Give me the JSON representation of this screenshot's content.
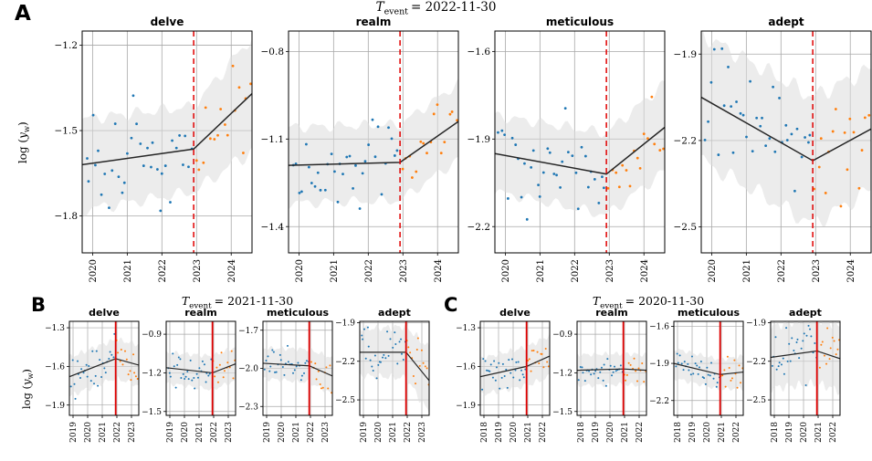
{
  "figure": {
    "background": "#ffffff",
    "ylabel": {
      "prefix": "log (",
      "var": "y",
      "sub": "w",
      "suffix": ")"
    },
    "colors": {
      "pre_scatter": "#1f77b4",
      "post_scatter": "#ff7f0e",
      "trend": "#262626",
      "band": "#dcdcdc",
      "grid": "#a8a8a8",
      "event_line": "#e00000",
      "border": "#000000",
      "text": "#000000"
    }
  },
  "chart_data": {
    "type": "line",
    "description": "Regression-discontinuity style word-frequency plots: log word frequency vs time, piecewise-linear trend with confidence band, monthly scatter (blue = pre-event, orange = post-event), red vertical line at event date.",
    "panels": [
      {
        "label": "A",
        "size": "large",
        "title": {
          "symbol": "T",
          "subscript": "event",
          "rest": "= 2022-11-30"
        },
        "event_x": 2022.917,
        "event_line_style": "dashed",
        "x_min": 2019.7,
        "x_max": 2024.6,
        "x_ticks": [
          2020,
          2021,
          2022,
          2023,
          2024
        ],
        "x_tick_labels": [
          "2020",
          "2021",
          "2022",
          "2023",
          "2024"
        ],
        "subplots": [
          {
            "word": "delve",
            "y_min": -1.93,
            "y_max": -1.15,
            "y_ticks": [
              -1.2,
              -1.5,
              -1.8
            ],
            "trend": {
              "x": [
                2019.7,
                2022.917,
                2024.6
              ],
              "y": [
                -1.62,
                -1.565,
                -1.37
              ]
            },
            "band_halfwidth": [
              0.16,
              0.15,
              0.2
            ],
            "scatter": {
              "n_pre": 34,
              "n_post": 16,
              "sd": 0.085,
              "seed": 11
            }
          },
          {
            "word": "realm",
            "y_min": -1.49,
            "y_max": -0.73,
            "y_ticks": [
              -0.8,
              -1.1,
              -1.4
            ],
            "trend": {
              "x": [
                2019.7,
                2022.917,
                2024.6
              ],
              "y": [
                -1.19,
                -1.18,
                -1.04
              ]
            },
            "band_halfwidth": [
              0.13,
              0.13,
              0.13
            ],
            "scatter": {
              "n_pre": 34,
              "n_post": 16,
              "sd": 0.07,
              "seed": 12
            }
          },
          {
            "word": "meticulous",
            "y_min": -2.29,
            "y_max": -1.53,
            "y_ticks": [
              -1.6,
              -1.9,
              -2.2
            ],
            "trend": {
              "x": [
                2019.7,
                2022.917,
                2024.6
              ],
              "y": [
                -1.95,
                -2.02,
                -1.86
              ]
            },
            "band_halfwidth": [
              0.13,
              0.14,
              0.15
            ],
            "scatter": {
              "n_pre": 34,
              "n_post": 16,
              "sd": 0.075,
              "seed": 13
            }
          },
          {
            "word": "adept",
            "y_min": -2.59,
            "y_max": -1.82,
            "y_ticks": [
              -1.9,
              -2.2,
              -2.5
            ],
            "trend": {
              "x": [
                2019.7,
                2022.917,
                2024.6
              ],
              "y": [
                -2.05,
                -2.27,
                -2.16
              ]
            },
            "band_halfwidth": [
              0.22,
              0.22,
              0.21
            ],
            "scatter": {
              "n_pre": 34,
              "n_post": 16,
              "sd": 0.105,
              "seed": 14
            }
          }
        ]
      },
      {
        "label": "B",
        "size": "small",
        "title": {
          "symbol": "T",
          "subscript": "event",
          "rest": "= 2021-11-30"
        },
        "event_x": 2021.917,
        "event_line_style": "solid",
        "x_min": 2018.75,
        "x_max": 2023.5,
        "x_ticks": [
          2019,
          2020,
          2021,
          2022,
          2023
        ],
        "x_tick_labels": [
          "2019",
          "2020",
          "2021",
          "2022",
          "2023"
        ],
        "subplots": [
          {
            "word": "delve",
            "y_min": -1.98,
            "y_max": -1.25,
            "y_ticks": [
              -1.3,
              -1.6,
              -1.9
            ],
            "trend": {
              "x": [
                2018.75,
                2021.917,
                2023.5
              ],
              "y": [
                -1.68,
                -1.54,
                -1.59
              ]
            },
            "band_halfwidth": [
              0.15,
              0.15,
              0.16
            ],
            "scatter": {
              "n_pre": 30,
              "n_post": 14,
              "sd": 0.08,
              "seed": 21
            }
          },
          {
            "word": "realm",
            "y_min": -1.53,
            "y_max": -0.8,
            "y_ticks": [
              -0.9,
              -1.2,
              -1.5
            ],
            "trend": {
              "x": [
                2018.75,
                2021.917,
                2023.5
              ],
              "y": [
                -1.16,
                -1.2,
                -1.13
              ]
            },
            "band_halfwidth": [
              0.12,
              0.13,
              0.13
            ],
            "scatter": {
              "n_pre": 30,
              "n_post": 14,
              "sd": 0.065,
              "seed": 22
            }
          },
          {
            "word": "meticulous",
            "y_min": -2.37,
            "y_max": -1.63,
            "y_ticks": [
              -1.7,
              -2.0,
              -2.3
            ],
            "trend": {
              "x": [
                2018.75,
                2021.917,
                2023.5
              ],
              "y": [
                -1.96,
                -1.98,
                -2.06
              ]
            },
            "band_halfwidth": [
              0.12,
              0.13,
              0.14
            ],
            "scatter": {
              "n_pre": 30,
              "n_post": 14,
              "sd": 0.07,
              "seed": 23
            }
          },
          {
            "word": "adept",
            "y_min": -2.62,
            "y_max": -1.89,
            "y_ticks": [
              -1.9,
              -2.2,
              -2.5
            ],
            "trend": {
              "x": [
                2018.75,
                2021.917,
                2023.5
              ],
              "y": [
                -2.13,
                -2.13,
                -2.35
              ]
            },
            "band_halfwidth": [
              0.18,
              0.2,
              0.25
            ],
            "scatter": {
              "n_pre": 30,
              "n_post": 14,
              "sd": 0.1,
              "seed": 24
            }
          }
        ]
      },
      {
        "label": "C",
        "size": "small",
        "title": {
          "symbol": "T",
          "subscript": "event",
          "rest": "= 2020-11-30"
        },
        "event_x": 2020.917,
        "event_line_style": "solid",
        "x_min": 2017.75,
        "x_max": 2022.5,
        "x_ticks": [
          2018,
          2019,
          2020,
          2021,
          2022
        ],
        "x_tick_labels": [
          "2018",
          "2019",
          "2020",
          "2021",
          "2022"
        ],
        "subplots": [
          {
            "word": "delve",
            "y_min": -1.98,
            "y_max": -1.25,
            "y_ticks": [
              -1.3,
              -1.6,
              -1.9
            ],
            "trend": {
              "x": [
                2017.75,
                2020.917,
                2022.5
              ],
              "y": [
                -1.68,
                -1.6,
                -1.52
              ]
            },
            "band_halfwidth": [
              0.14,
              0.15,
              0.16
            ],
            "scatter": {
              "n_pre": 30,
              "n_post": 14,
              "sd": 0.08,
              "seed": 31
            }
          },
          {
            "word": "realm",
            "y_min": -1.53,
            "y_max": -0.8,
            "y_ticks": [
              -0.9,
              -1.2,
              -1.5
            ],
            "trend": {
              "x": [
                2017.75,
                2020.917,
                2022.5
              ],
              "y": [
                -1.18,
                -1.17,
                -1.18
              ]
            },
            "band_halfwidth": [
              0.12,
              0.12,
              0.12
            ],
            "scatter": {
              "n_pre": 30,
              "n_post": 14,
              "sd": 0.06,
              "seed": 32
            }
          },
          {
            "word": "meticulous",
            "y_min": -2.32,
            "y_max": -1.56,
            "y_ticks": [
              -1.6,
              -1.9,
              -2.2
            ],
            "trend": {
              "x": [
                2017.75,
                2020.917,
                2022.5
              ],
              "y": [
                -1.9,
                -1.99,
                -1.97
              ]
            },
            "band_halfwidth": [
              0.12,
              0.12,
              0.13
            ],
            "scatter": {
              "n_pre": 30,
              "n_post": 14,
              "sd": 0.065,
              "seed": 33
            }
          },
          {
            "word": "adept",
            "y_min": -2.62,
            "y_max": -1.89,
            "y_ticks": [
              -1.9,
              -2.2,
              -2.5
            ],
            "trend": {
              "x": [
                2017.75,
                2020.917,
                2022.5
              ],
              "y": [
                -2.17,
                -2.12,
                -2.18
              ]
            },
            "band_halfwidth": [
              0.24,
              0.25,
              0.25
            ],
            "scatter": {
              "n_pre": 30,
              "n_post": 14,
              "sd": 0.115,
              "seed": 34
            }
          }
        ]
      }
    ]
  }
}
